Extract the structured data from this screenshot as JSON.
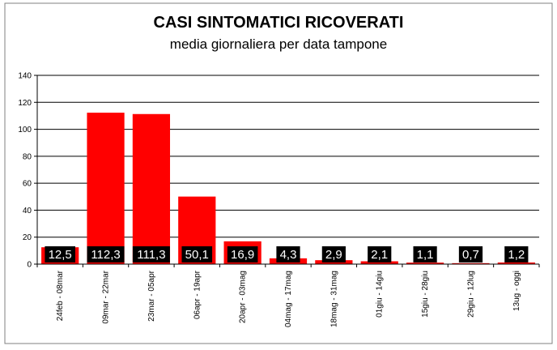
{
  "chart_data": {
    "type": "bar",
    "title": "CASI SINTOMATICI RICOVERATI",
    "subtitle": "media giornaliera per data tampone",
    "categories": [
      "24feb - 08mar",
      "09mar - 22mar",
      "23mar - 05apr",
      "06apr - 19apr",
      "20apr - 03mag",
      "04mag - 17mag",
      "18mag - 31mag",
      "01giu - 14giu",
      "15giu - 28giu",
      "29giu - 12lug",
      "13ug - oggi"
    ],
    "values": [
      12.5,
      112.3,
      111.3,
      50.1,
      16.9,
      4.3,
      2.9,
      2.1,
      1.1,
      0.7,
      1.2
    ],
    "data_labels": [
      "12,5",
      "112,3",
      "111,3",
      "50,1",
      "16,9",
      "4,3",
      "2,9",
      "2,1",
      "1,1",
      "0,7",
      "1,2"
    ],
    "ylim": [
      0,
      140
    ],
    "yticks": [
      0,
      20,
      40,
      60,
      80,
      100,
      120,
      140
    ],
    "ytick_labels": [
      "0",
      "20",
      "40",
      "60",
      "80",
      "100",
      "120",
      "140"
    ],
    "grid": true,
    "legend": "none",
    "colors": {
      "bar": "#ff0000",
      "label_box": "#000000",
      "label_text": "#ffffff",
      "gridline": "#000000",
      "frame": "#808080"
    }
  }
}
